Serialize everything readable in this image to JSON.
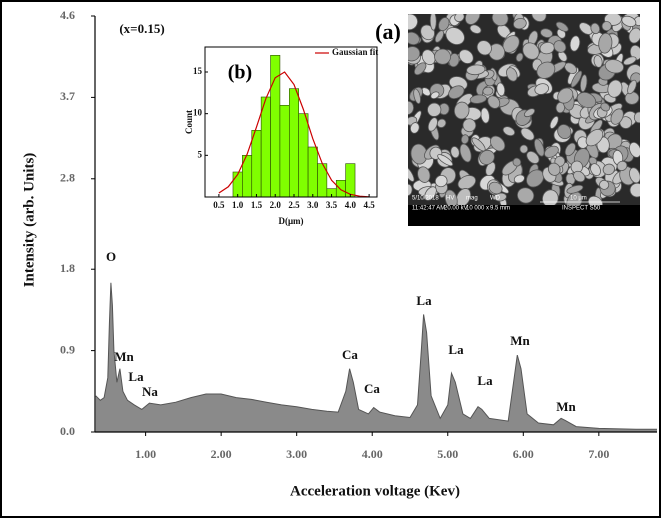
{
  "chart_data": [
    {
      "type": "area",
      "xlabel": "Acceleration voltage (Kev)",
      "ylabel": "Intensity (arb. Units)",
      "color": "#8a8a8a",
      "annotations": [
        "(x=0.15)",
        "O",
        "Mn",
        "La",
        "Na",
        "Ca",
        "Ca",
        "La",
        "La",
        "La",
        "Mn",
        "Mn"
      ],
      "xlim": [
        0.33,
        7.77
      ],
      "ylim": [
        0,
        4.6
      ],
      "xticks": [
        {
          "value": 1,
          "label": "1.00"
        },
        {
          "value": 2,
          "label": "2.00"
        },
        {
          "value": 3,
          "label": "3.00"
        },
        {
          "value": 4,
          "label": "4.00"
        },
        {
          "value": 5,
          "label": "5.00"
        },
        {
          "value": 6,
          "label": "6.00"
        },
        {
          "value": 7,
          "label": "7.00"
        }
      ],
      "yticks": [
        {
          "value": 0,
          "label": "0.0"
        },
        0.9,
        1.8,
        2.8,
        3.7,
        4.6
      ],
      "x": [
        0.34,
        0.4,
        0.45,
        0.5,
        0.52,
        0.54,
        0.56,
        0.58,
        0.62,
        0.66,
        0.7,
        0.76,
        0.85,
        0.95,
        1.05,
        1.2,
        1.4,
        1.6,
        1.8,
        2.0,
        2.2,
        2.4,
        2.6,
        2.8,
        3.0,
        3.2,
        3.4,
        3.55,
        3.65,
        3.7,
        3.75,
        3.82,
        3.95,
        4.02,
        4.1,
        4.3,
        4.5,
        4.6,
        4.65,
        4.68,
        4.72,
        4.78,
        4.9,
        5.0,
        5.05,
        5.1,
        5.2,
        5.3,
        5.4,
        5.45,
        5.55,
        5.8,
        5.88,
        5.92,
        5.97,
        6.05,
        6.2,
        6.4,
        6.5,
        6.55,
        6.7,
        7.0,
        7.5,
        7.77
      ],
      "values": [
        0.4,
        0.35,
        0.38,
        0.6,
        1.2,
        1.65,
        1.4,
        0.9,
        0.55,
        0.7,
        0.45,
        0.35,
        0.3,
        0.25,
        0.32,
        0.3,
        0.33,
        0.38,
        0.42,
        0.42,
        0.38,
        0.36,
        0.33,
        0.3,
        0.28,
        0.25,
        0.23,
        0.22,
        0.45,
        0.7,
        0.55,
        0.25,
        0.2,
        0.27,
        0.22,
        0.18,
        0.16,
        0.3,
        0.9,
        1.3,
        1.1,
        0.4,
        0.15,
        0.3,
        0.65,
        0.55,
        0.2,
        0.15,
        0.28,
        0.25,
        0.15,
        0.12,
        0.6,
        0.85,
        0.7,
        0.2,
        0.1,
        0.08,
        0.15,
        0.13,
        0.06,
        0.04,
        0.03,
        0.03
      ]
    },
    {
      "type": "histogram",
      "annotation": "(b)",
      "xlabel": "D(μm)",
      "ylabel": "Count",
      "color": "#80ff00",
      "legend": "upper right",
      "xlim": [
        0.13,
        4.71
      ],
      "ylim": [
        0,
        18
      ],
      "xticks": [
        0.5,
        {
          "value": 1,
          "label": "1.0"
        },
        1.5,
        {
          "value": 2,
          "label": "2.0"
        },
        2.5,
        {
          "value": 3,
          "label": "3.0"
        },
        3.5,
        {
          "value": 4,
          "label": "4.0"
        },
        4.5
      ],
      "yticks": [
        5,
        10,
        15
      ],
      "bins": [
        0.875,
        1.125,
        1.375,
        1.625,
        1.875,
        2.125,
        2.375,
        2.625,
        2.875,
        3.125,
        3.375,
        3.625,
        3.875,
        4.125
      ],
      "values": [
        3,
        5,
        8,
        12,
        17,
        11,
        13,
        10,
        6,
        4,
        1,
        2,
        4
      ],
      "series": [
        {
          "name": "Gaussian fit",
          "color": "#cc0000",
          "x": [
            0.5,
            0.75,
            1.0,
            1.25,
            1.5,
            1.75,
            2.0,
            2.25,
            2.5,
            2.75,
            3.0,
            3.25,
            3.5,
            3.75,
            4.0,
            4.25,
            4.5
          ],
          "values": [
            0.48,
            1.23,
            2.7,
            5.12,
            8.37,
            11.79,
            14.3,
            15.0,
            13.5,
            10.5,
            7.0,
            4.04,
            2.0,
            0.86,
            0.32,
            0.1,
            0.02
          ]
        }
      ]
    }
  ],
  "sem_image": {
    "label": "(a)",
    "info": [
      "5/10/2018",
      "HV",
      "mag",
      "WD",
      "10 μm",
      "11:42:47 AM",
      "20.00 kV",
      "10 000 x",
      "9.5 mm",
      "INSPECT S50"
    ]
  }
}
